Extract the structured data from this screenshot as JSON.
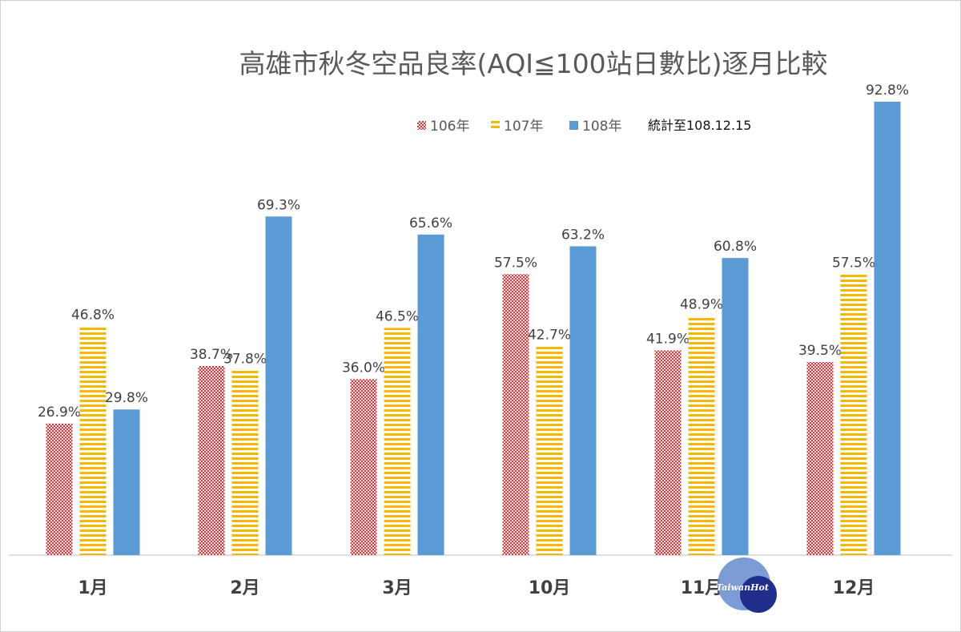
{
  "chart_data": {
    "type": "bar",
    "title": "高雄市秋冬空品良率(AQI≦100站日數比)逐月比較",
    "note": "統計至108.12.15",
    "categories": [
      "1月",
      "2月",
      "3月",
      "10月",
      "11月",
      "12月"
    ],
    "series": [
      {
        "name": "106年",
        "values": [
          26.9,
          38.7,
          36.0,
          57.5,
          41.9,
          39.5
        ],
        "color": "#e8333b",
        "pattern": "dots"
      },
      {
        "name": "107年",
        "values": [
          46.8,
          37.8,
          46.5,
          42.7,
          48.9,
          57.5
        ],
        "color": "#f5b800",
        "pattern": "horizontal-stripes"
      },
      {
        "name": "108年",
        "values": [
          29.8,
          69.3,
          65.6,
          63.2,
          60.8,
          92.8
        ],
        "color": "#5b9bd5",
        "pattern": "solid"
      }
    ],
    "ylim": [
      0,
      100
    ],
    "grid": false,
    "legend_position": "top-right",
    "value_suffix": "%"
  },
  "watermark": {
    "text": "TaiwanHot"
  }
}
